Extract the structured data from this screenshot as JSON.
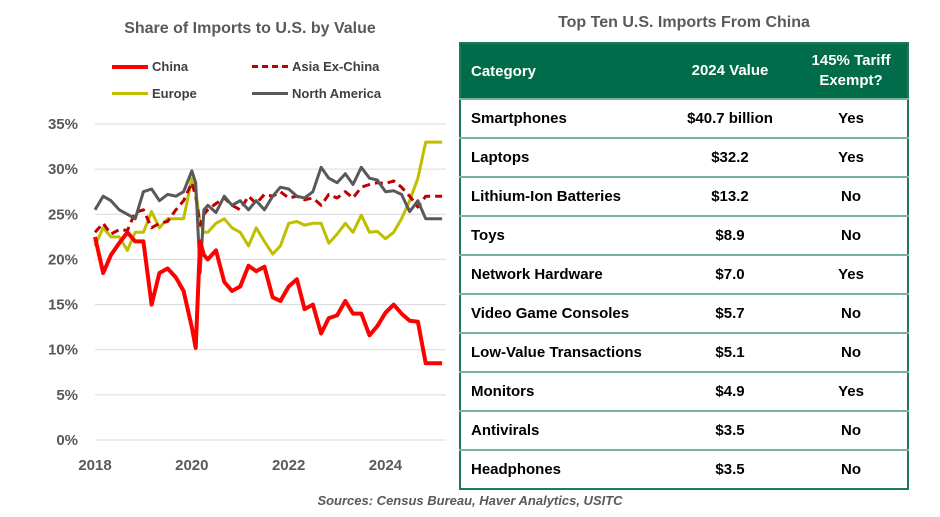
{
  "chart_data": {
    "type": "line",
    "title": "Share of Imports to U.S. by Value",
    "xlabel": "",
    "ylabel": "",
    "ylim": [
      0,
      35
    ],
    "xlim": [
      2018.0,
      2025.25
    ],
    "grid": true,
    "legend_position": "top",
    "x_ticks": [
      "2018",
      "2020",
      "2022",
      "2024"
    ],
    "x_tick_values": [
      2018,
      2020,
      2022,
      2024
    ],
    "y_ticks": [
      "0%",
      "5%",
      "10%",
      "15%",
      "20%",
      "25%",
      "30%",
      "35%"
    ],
    "y_tick_values": [
      0,
      5,
      10,
      15,
      20,
      25,
      30,
      35
    ],
    "x": [
      2018.0,
      2018.17,
      2018.33,
      2018.5,
      2018.67,
      2018.83,
      2019.0,
      2019.17,
      2019.33,
      2019.5,
      2019.67,
      2019.83,
      2020.0,
      2020.08,
      2020.17,
      2020.25,
      2020.33,
      2020.5,
      2020.67,
      2020.83,
      2021.0,
      2021.17,
      2021.33,
      2021.5,
      2021.67,
      2021.83,
      2022.0,
      2022.17,
      2022.33,
      2022.5,
      2022.67,
      2022.83,
      2023.0,
      2023.17,
      2023.33,
      2023.5,
      2023.67,
      2023.83,
      2024.0,
      2024.17,
      2024.33,
      2024.5,
      2024.67,
      2024.83,
      2025.0,
      2025.17
    ],
    "series": [
      {
        "name": "China",
        "color": "#ff0000",
        "dash": "solid",
        "values": [
          22.5,
          18.5,
          20.5,
          21.8,
          23.0,
          22.0,
          22.0,
          15.0,
          18.5,
          19.0,
          18.0,
          16.5,
          12.5,
          10.2,
          22.0,
          20.5,
          20.0,
          21.0,
          17.5,
          16.5,
          17.0,
          19.3,
          18.7,
          19.2,
          15.8,
          15.4,
          17.0,
          17.8,
          14.5,
          15.0,
          11.8,
          13.5,
          13.8,
          15.4,
          14.0,
          14.0,
          11.6,
          12.6,
          14.1,
          15.0,
          14.0,
          13.2,
          13.1,
          8.5,
          8.5,
          8.5
        ]
      },
      {
        "name": "Asia Ex-China",
        "color": "#c00000",
        "dash": "dashed",
        "values": [
          23.0,
          24.0,
          22.8,
          23.3,
          23.2,
          25.2,
          25.5,
          23.5,
          24.0,
          24.2,
          25.5,
          26.5,
          28.5,
          27.0,
          23.8,
          25.0,
          25.5,
          26.2,
          26.8,
          26.0,
          25.5,
          27.0,
          26.2,
          27.2,
          27.0,
          27.5,
          26.8,
          27.0,
          26.6,
          26.8,
          26.0,
          27.2,
          26.8,
          27.5,
          26.8,
          28.0,
          28.3,
          28.5,
          28.4,
          28.7,
          28.0,
          27.0,
          25.8,
          27.0,
          27.0,
          27.0
        ]
      },
      {
        "name": "Europe",
        "color": "#bfbf00",
        "dash": "solid",
        "values": [
          21.5,
          23.5,
          22.5,
          22.5,
          21.0,
          23.0,
          23.0,
          25.3,
          23.5,
          24.5,
          24.5,
          24.5,
          29.0,
          27.5,
          24.0,
          23.0,
          23.0,
          24.0,
          24.5,
          23.5,
          23.0,
          21.5,
          23.5,
          22.0,
          20.6,
          21.5,
          24.0,
          24.2,
          23.8,
          24.0,
          24.0,
          21.8,
          22.8,
          24.0,
          23.0,
          24.9,
          23.0,
          23.1,
          22.3,
          23.0,
          24.5,
          26.5,
          29.0,
          33.0,
          33.0,
          33.0
        ]
      },
      {
        "name": "North America",
        "color": "#595959",
        "dash": "solid",
        "values": [
          25.5,
          27.0,
          26.5,
          25.5,
          25.0,
          24.5,
          27.5,
          27.8,
          26.5,
          27.2,
          27.0,
          27.5,
          29.8,
          28.5,
          18.5,
          25.5,
          26.0,
          25.2,
          27.0,
          26.0,
          26.5,
          25.5,
          26.5,
          25.5,
          27.0,
          28.0,
          27.8,
          27.0,
          26.8,
          27.5,
          30.2,
          29.0,
          28.5,
          29.5,
          28.3,
          30.2,
          29.0,
          28.8,
          27.5,
          27.6,
          27.2,
          25.3,
          26.5,
          24.5,
          24.5,
          24.5
        ]
      }
    ]
  },
  "legend": [
    {
      "label": "China"
    },
    {
      "label": "Asia Ex-China"
    },
    {
      "label": "Europe"
    },
    {
      "label": "North America"
    }
  ],
  "table": {
    "title": "Top Ten U.S. Imports From China",
    "headers": [
      "Category",
      "2024 Value",
      "145% Tariff Exempt?"
    ],
    "header_color": "#006c4a",
    "rows": [
      [
        "Smartphones",
        "$40.7 billion",
        "Yes"
      ],
      [
        "Laptops",
        "$32.2",
        "Yes"
      ],
      [
        "Lithium-Ion Batteries",
        "$13.2",
        "No"
      ],
      [
        "Toys",
        "$8.9",
        "No"
      ],
      [
        "Network Hardware",
        "$7.0",
        "Yes"
      ],
      [
        "Video Game Consoles",
        "$5.7",
        "No"
      ],
      [
        "Low-Value Transactions",
        "$5.1",
        "No"
      ],
      [
        "Monitors",
        "$4.9",
        "Yes"
      ],
      [
        "Antivirals",
        "$3.5",
        "No"
      ],
      [
        "Headphones",
        "$3.5",
        "No"
      ]
    ]
  },
  "source": "Sources: Census Bureau, Haver Analytics, USITC"
}
